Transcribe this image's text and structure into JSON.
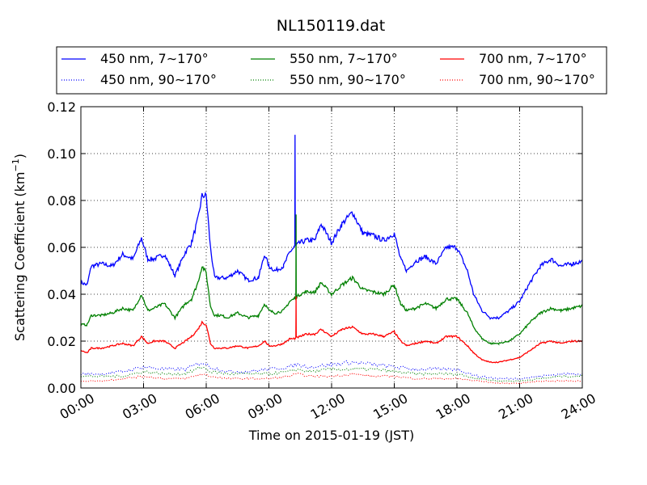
{
  "chart_data": {
    "type": "line",
    "title": "NL150119.dat",
    "xlabel": "Time on 2015-01-19 (JST)",
    "ylabel": "Scattering Coefficient (km",
    "ylabel_sup": "−1",
    "ylabel_close": ")",
    "x_ticks": [
      "00:00",
      "03:00",
      "06:00",
      "09:00",
      "12:00",
      "15:00",
      "18:00",
      "21:00",
      "24:00"
    ],
    "y_ticks": [
      "0.00",
      "0.02",
      "0.04",
      "0.06",
      "0.08",
      "0.10",
      "0.12"
    ],
    "xlim": [
      0,
      24
    ],
    "ylim": [
      0,
      0.12
    ],
    "grid": true,
    "legend_position": "top",
    "series": [
      {
        "name": "450 nm, 7∼170°",
        "color": "#0000ff",
        "style": "solid",
        "x": [
          0,
          0.3,
          0.5,
          1.0,
          1.5,
          2.0,
          2.5,
          2.9,
          3.2,
          3.5,
          4.0,
          4.5,
          5.0,
          5.3,
          5.6,
          5.8,
          6.0,
          6.2,
          6.4,
          6.7,
          7.0,
          7.5,
          8.0,
          8.5,
          8.8,
          9.0,
          9.3,
          9.7,
          10.0,
          10.2,
          10.5,
          10.8,
          11.2,
          11.5,
          12.0,
          12.5,
          13.0,
          13.5,
          14.0,
          14.5,
          15.0,
          15.3,
          15.6,
          16.0,
          16.5,
          17.0,
          17.5,
          18.0,
          18.5,
          18.8,
          19.2,
          19.6,
          20.0,
          20.5,
          21.0,
          21.5,
          22.0,
          22.5,
          23.0,
          23.5,
          24.0
        ],
        "y": [
          0.045,
          0.044,
          0.052,
          0.053,
          0.052,
          0.057,
          0.055,
          0.064,
          0.055,
          0.055,
          0.057,
          0.048,
          0.058,
          0.062,
          0.072,
          0.082,
          0.082,
          0.06,
          0.047,
          0.047,
          0.047,
          0.05,
          0.046,
          0.047,
          0.057,
          0.052,
          0.05,
          0.052,
          0.058,
          0.06,
          0.062,
          0.063,
          0.063,
          0.07,
          0.062,
          0.07,
          0.075,
          0.066,
          0.065,
          0.063,
          0.066,
          0.055,
          0.05,
          0.054,
          0.056,
          0.053,
          0.06,
          0.06,
          0.05,
          0.04,
          0.033,
          0.03,
          0.03,
          0.033,
          0.037,
          0.045,
          0.052,
          0.055,
          0.052,
          0.053,
          0.054
        ]
      },
      {
        "name": "550 nm, 7∼170°",
        "color": "#008000",
        "style": "solid",
        "x": [
          0,
          0.3,
          0.5,
          1.0,
          1.5,
          2.0,
          2.5,
          2.9,
          3.2,
          3.5,
          4.0,
          4.5,
          5.0,
          5.3,
          5.6,
          5.8,
          6.0,
          6.2,
          6.4,
          6.7,
          7.0,
          7.5,
          8.0,
          8.5,
          8.8,
          9.0,
          9.3,
          9.7,
          10.0,
          10.2,
          10.5,
          10.8,
          11.2,
          11.5,
          12.0,
          12.5,
          13.0,
          13.5,
          14.0,
          14.5,
          15.0,
          15.3,
          15.6,
          16.0,
          16.5,
          17.0,
          17.5,
          18.0,
          18.5,
          18.8,
          19.2,
          19.6,
          20.0,
          20.5,
          21.0,
          21.5,
          22.0,
          22.5,
          23.0,
          23.5,
          24.0
        ],
        "y": [
          0.027,
          0.027,
          0.031,
          0.031,
          0.032,
          0.034,
          0.033,
          0.04,
          0.033,
          0.034,
          0.036,
          0.03,
          0.036,
          0.038,
          0.045,
          0.052,
          0.049,
          0.035,
          0.031,
          0.031,
          0.03,
          0.032,
          0.03,
          0.031,
          0.036,
          0.033,
          0.032,
          0.033,
          0.037,
          0.038,
          0.04,
          0.041,
          0.041,
          0.045,
          0.04,
          0.044,
          0.047,
          0.042,
          0.041,
          0.04,
          0.044,
          0.036,
          0.033,
          0.034,
          0.036,
          0.034,
          0.038,
          0.038,
          0.032,
          0.026,
          0.021,
          0.019,
          0.019,
          0.02,
          0.023,
          0.028,
          0.032,
          0.034,
          0.033,
          0.034,
          0.035
        ]
      },
      {
        "name": "700 nm, 7∼170°",
        "color": "#ff0000",
        "style": "solid",
        "x": [
          0,
          0.3,
          0.5,
          1.0,
          1.5,
          2.0,
          2.5,
          2.9,
          3.2,
          3.5,
          4.0,
          4.5,
          5.0,
          5.3,
          5.6,
          5.8,
          6.0,
          6.2,
          6.4,
          6.7,
          7.0,
          7.5,
          8.0,
          8.5,
          8.8,
          9.0,
          9.3,
          9.7,
          10.0,
          10.2,
          10.5,
          10.8,
          11.2,
          11.5,
          12.0,
          12.5,
          13.0,
          13.5,
          14.0,
          14.5,
          15.0,
          15.3,
          15.6,
          16.0,
          16.5,
          17.0,
          17.5,
          18.0,
          18.5,
          18.8,
          19.2,
          19.6,
          20.0,
          20.5,
          21.0,
          21.5,
          22.0,
          22.5,
          23.0,
          23.5,
          24.0
        ],
        "y": [
          0.016,
          0.015,
          0.017,
          0.017,
          0.018,
          0.019,
          0.018,
          0.022,
          0.019,
          0.02,
          0.02,
          0.017,
          0.02,
          0.022,
          0.025,
          0.028,
          0.027,
          0.019,
          0.017,
          0.017,
          0.017,
          0.018,
          0.017,
          0.018,
          0.02,
          0.018,
          0.018,
          0.019,
          0.021,
          0.021,
          0.022,
          0.023,
          0.023,
          0.025,
          0.022,
          0.025,
          0.026,
          0.023,
          0.023,
          0.022,
          0.024,
          0.02,
          0.018,
          0.019,
          0.02,
          0.019,
          0.022,
          0.022,
          0.018,
          0.015,
          0.012,
          0.011,
          0.011,
          0.012,
          0.013,
          0.016,
          0.019,
          0.02,
          0.019,
          0.02,
          0.02
        ]
      },
      {
        "name": "450 nm, 90∼170°",
        "color": "#0000ff",
        "style": "dotted",
        "x": [
          0,
          1,
          2,
          3,
          4,
          5,
          5.8,
          6.2,
          7,
          8,
          9,
          10,
          10.3,
          11,
          12,
          13,
          14,
          15,
          16,
          17,
          18,
          19,
          20,
          21,
          22,
          23,
          24
        ],
        "y": [
          0.006,
          0.006,
          0.007,
          0.009,
          0.008,
          0.008,
          0.011,
          0.009,
          0.007,
          0.007,
          0.008,
          0.009,
          0.01,
          0.009,
          0.01,
          0.011,
          0.01,
          0.009,
          0.008,
          0.008,
          0.008,
          0.005,
          0.004,
          0.004,
          0.005,
          0.006,
          0.006
        ]
      },
      {
        "name": "550 nm, 90∼170°",
        "color": "#008000",
        "style": "dotted",
        "x": [
          0,
          1,
          2,
          3,
          4,
          5,
          5.8,
          6.2,
          7,
          8,
          9,
          10,
          10.3,
          11,
          12,
          13,
          14,
          15,
          16,
          17,
          18,
          19,
          20,
          21,
          22,
          23,
          24
        ],
        "y": [
          0.005,
          0.005,
          0.005,
          0.007,
          0.006,
          0.006,
          0.009,
          0.007,
          0.006,
          0.006,
          0.006,
          0.007,
          0.008,
          0.007,
          0.008,
          0.008,
          0.008,
          0.007,
          0.006,
          0.006,
          0.006,
          0.004,
          0.003,
          0.003,
          0.004,
          0.005,
          0.005
        ]
      },
      {
        "name": "700 nm, 90∼170°",
        "color": "#ff0000",
        "style": "dotted",
        "x": [
          0,
          1,
          2,
          3,
          4,
          5,
          5.8,
          6.2,
          7,
          8,
          9,
          10,
          10.3,
          11,
          12,
          13,
          14,
          15,
          16,
          17,
          18,
          19,
          20,
          21,
          22,
          23,
          24
        ],
        "y": [
          0.003,
          0.003,
          0.004,
          0.005,
          0.004,
          0.004,
          0.006,
          0.005,
          0.004,
          0.004,
          0.004,
          0.005,
          0.006,
          0.005,
          0.005,
          0.006,
          0.005,
          0.005,
          0.004,
          0.004,
          0.004,
          0.003,
          0.002,
          0.002,
          0.003,
          0.003,
          0.003
        ]
      }
    ],
    "spikes": [
      {
        "series": "450 nm, 7∼170°",
        "x": 10.25,
        "y": 0.108
      },
      {
        "series": "550 nm, 7∼170°",
        "x": 10.3,
        "y": 0.074
      },
      {
        "series": "700 nm, 7∼170°",
        "x": 10.3,
        "y": 0.039
      }
    ]
  }
}
